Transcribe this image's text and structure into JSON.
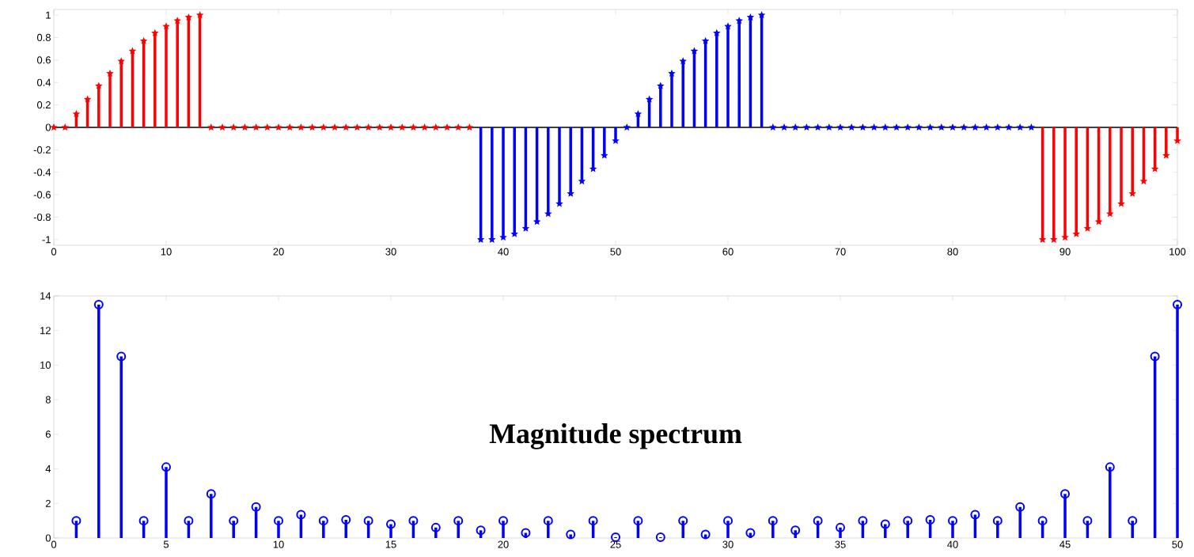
{
  "chart_data": [
    {
      "type": "lollipop",
      "marker": "star",
      "xlim": [
        0,
        100
      ],
      "ylim": [
        -1.05,
        1.05
      ],
      "xticks": [
        0,
        10,
        20,
        30,
        40,
        50,
        60,
        70,
        80,
        90,
        100
      ],
      "yticks": [
        -1,
        -0.8,
        -0.6,
        -0.4,
        -0.2,
        0,
        0.2,
        0.4,
        0.6,
        0.8,
        1
      ],
      "ref_lines": [
        {
          "axis": "y",
          "value": 0,
          "color": "#000000"
        }
      ],
      "series": [
        {
          "color": "#ff0000",
          "x": [
            0,
            1,
            2,
            3,
            4,
            5,
            6,
            7,
            8,
            9,
            10,
            11,
            12,
            13,
            14,
            15,
            16,
            17,
            18,
            19,
            20,
            21,
            22,
            23,
            24,
            25,
            26,
            27,
            28,
            29,
            30,
            31,
            32,
            33,
            34,
            35,
            36,
            37,
            88,
            89,
            90,
            91,
            92,
            93,
            94,
            95,
            96,
            97,
            98,
            99,
            100
          ],
          "values": [
            0,
            0,
            0.12,
            0.25,
            0.37,
            0.48,
            0.59,
            0.68,
            0.77,
            0.84,
            0.9,
            0.95,
            0.98,
            1,
            0,
            0,
            0,
            0,
            0,
            0,
            0,
            0,
            0,
            0,
            0,
            0,
            0,
            0,
            0,
            0,
            0,
            0,
            0,
            0,
            0,
            0,
            0,
            0,
            -1,
            -1,
            -0.98,
            -0.95,
            -0.9,
            -0.84,
            -0.77,
            -0.68,
            -0.59,
            -0.48,
            -0.37,
            -0.25,
            -0.12
          ]
        },
        {
          "color": "#0000ff",
          "x": [
            38,
            39,
            40,
            41,
            42,
            43,
            44,
            45,
            46,
            47,
            48,
            49,
            50,
            51,
            52,
            53,
            54,
            55,
            56,
            57,
            58,
            59,
            60,
            61,
            62,
            63,
            64,
            65,
            66,
            67,
            68,
            69,
            70,
            71,
            72,
            73,
            74,
            75,
            76,
            77,
            78,
            79,
            80,
            81,
            82,
            83,
            84,
            85,
            86,
            87
          ],
          "values": [
            -1,
            -1,
            -0.98,
            -0.95,
            -0.9,
            -0.84,
            -0.77,
            -0.68,
            -0.59,
            -0.48,
            -0.37,
            -0.25,
            -0.12,
            0,
            0.12,
            0.25,
            0.37,
            0.48,
            0.59,
            0.68,
            0.77,
            0.84,
            0.9,
            0.95,
            0.98,
            1,
            0,
            0,
            0,
            0,
            0,
            0,
            0,
            0,
            0,
            0,
            0,
            0,
            0,
            0,
            0,
            0,
            0,
            0,
            0,
            0,
            0,
            0,
            0,
            0
          ]
        }
      ]
    },
    {
      "type": "lollipop",
      "marker": "circle",
      "xlim": [
        0,
        50
      ],
      "ylim": [
        0,
        14
      ],
      "xticks": [
        0,
        5,
        10,
        15,
        20,
        25,
        30,
        35,
        40,
        45,
        50
      ],
      "yticks": [
        0,
        2,
        4,
        6,
        8,
        10,
        12,
        14
      ],
      "annotations": [
        "Magnitude spectrum"
      ],
      "series": [
        {
          "color": "#0000ff",
          "x": [
            1,
            2,
            3,
            4,
            5,
            6,
            7,
            8,
            9,
            10,
            11,
            12,
            13,
            14,
            15,
            16,
            17,
            18,
            19,
            20,
            21,
            22,
            23,
            24,
            25,
            26,
            27,
            28,
            29,
            30,
            31,
            32,
            33,
            34,
            35,
            36,
            37,
            38,
            39,
            40,
            41,
            42,
            43,
            44,
            45,
            46,
            47,
            48,
            49,
            50
          ],
          "values": [
            1,
            13.5,
            10.5,
            1,
            4.1,
            1,
            2.55,
            1,
            1.8,
            1,
            1.35,
            1,
            1.05,
            1,
            0.8,
            1,
            0.6,
            1,
            0.45,
            1,
            0.3,
            1,
            0.2,
            1,
            0.05,
            1,
            0.05,
            1,
            0.2,
            1,
            0.3,
            1,
            0.45,
            1,
            0.6,
            1,
            0.8,
            1,
            1.05,
            1,
            1.35,
            1,
            1.8,
            1,
            2.55,
            1,
            4.1,
            1,
            10.5,
            13.5
          ]
        }
      ]
    }
  ]
}
